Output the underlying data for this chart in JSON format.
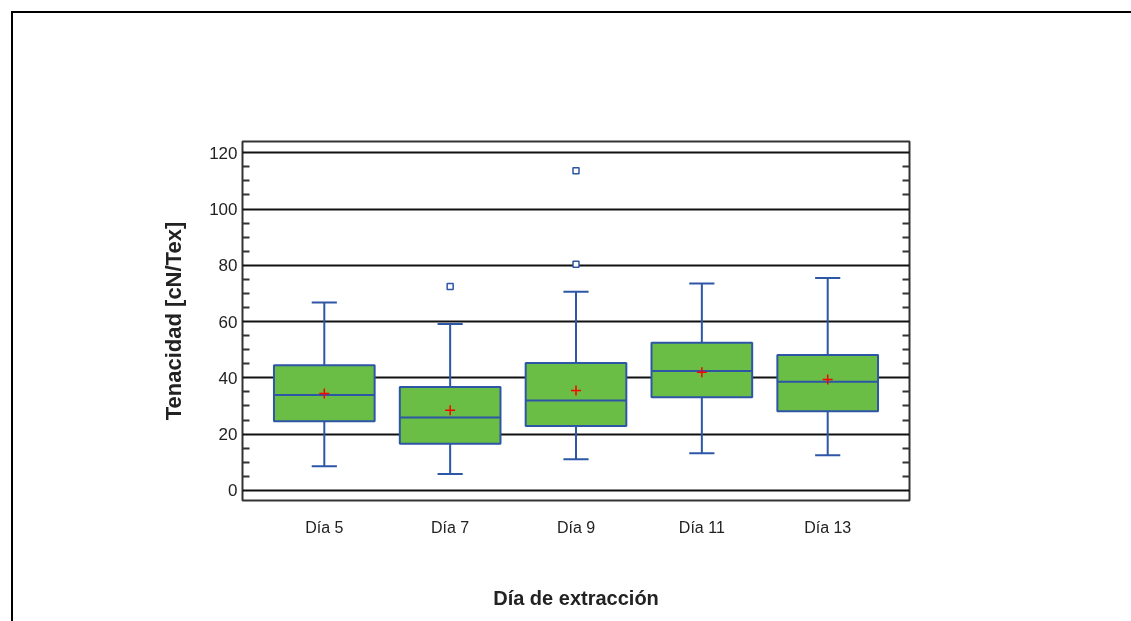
{
  "chart_data": {
    "type": "box",
    "xlabel": "Día de extracción",
    "ylabel": "Tenacidad [cN/Tex]",
    "categories": [
      "Día 5",
      "Día 7",
      "Día 9",
      "Día 11",
      "Día 13"
    ],
    "series": [
      {
        "color": "#6abd45",
        "boxes": [
          {
            "low": 8.6,
            "q1": 24.6,
            "median": 33.9,
            "q3": 44.5,
            "high": 66.8,
            "mean": 34.4
          },
          {
            "low": 5.8,
            "q1": 16.6,
            "median": 25.9,
            "q3": 36.7,
            "high": 59.1,
            "mean": 28.5,
            "outliers": [
              72.5
            ]
          },
          {
            "low": 11.1,
            "q1": 22.9,
            "median": 31.9,
            "q3": 45.3,
            "high": 70.6,
            "mean": 35.5,
            "outliers": [
              80.4,
              113.6
            ]
          },
          {
            "low": 13.2,
            "q1": 33.1,
            "median": 42.4,
            "q3": 52.5,
            "high": 73.5,
            "mean": 42.0
          },
          {
            "low": 12.5,
            "q1": 28.1,
            "median": 38.6,
            "q3": 48.1,
            "high": 75.5,
            "mean": 39.4
          }
        ]
      }
    ],
    "ylim": [
      -3.6,
      124
    ],
    "yticks": [
      0,
      {
        "value": 5,
        "label": null
      },
      {
        "value": 10,
        "label": null
      },
      {
        "value": 15,
        "label": null
      },
      20,
      {
        "value": 25,
        "label": null
      },
      {
        "value": 30,
        "label": null
      },
      {
        "value": 35,
        "label": null
      },
      40,
      {
        "value": 45,
        "label": null
      },
      {
        "value": 50,
        "label": null
      },
      {
        "value": 55,
        "label": null
      },
      60,
      {
        "value": 65,
        "label": null
      },
      {
        "value": 70,
        "label": null
      },
      {
        "value": 75,
        "label": null
      },
      80,
      {
        "value": 85,
        "label": null
      },
      {
        "value": 90,
        "label": null
      },
      {
        "value": 95,
        "label": null
      },
      100,
      {
        "value": 105,
        "label": null
      },
      {
        "value": 110,
        "label": null
      },
      {
        "value": 115,
        "label": null
      },
      120
    ],
    "grid": "y",
    "marker": "square"
  }
}
